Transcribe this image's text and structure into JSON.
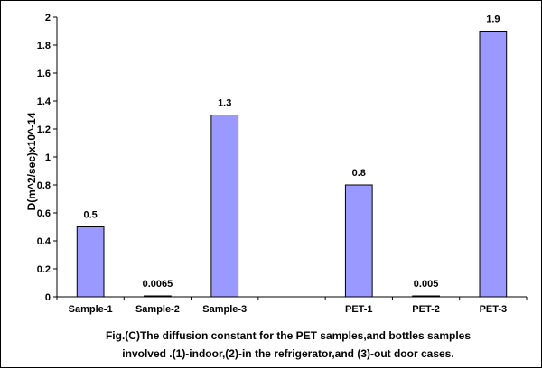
{
  "chart_data": {
    "type": "bar",
    "categories": [
      "Sample-1",
      "Sample-2",
      "Sample-3",
      "",
      "PET-1",
      "PET-2",
      "PET-3"
    ],
    "values": [
      0.5,
      0.0065,
      1.3,
      null,
      0.8,
      0.005,
      1.9
    ],
    "data_labels": [
      "0.5",
      "0.0065",
      "1.3",
      "",
      "0.8",
      "0.005",
      "1.9"
    ],
    "ylabel": "D(m^2/sec)x10^-14",
    "xlabel": "",
    "ylim": [
      0,
      2
    ],
    "yticks": [
      "0",
      "0.2",
      "0.4",
      "0.6",
      "0.8",
      "1",
      "1.2",
      "1.4",
      "1.6",
      "1.8",
      "2"
    ],
    "grid": false,
    "legend": "none",
    "bar_color": "#9999ff",
    "bar_edge_color": "#000000",
    "caption_lines": [
      "Fig.(C)The diffusion  constant for the PET samples,and bottles samples",
      "involved .(1)-indoor,(2)-in the refrigerator,and (3)-out door cases."
    ]
  }
}
